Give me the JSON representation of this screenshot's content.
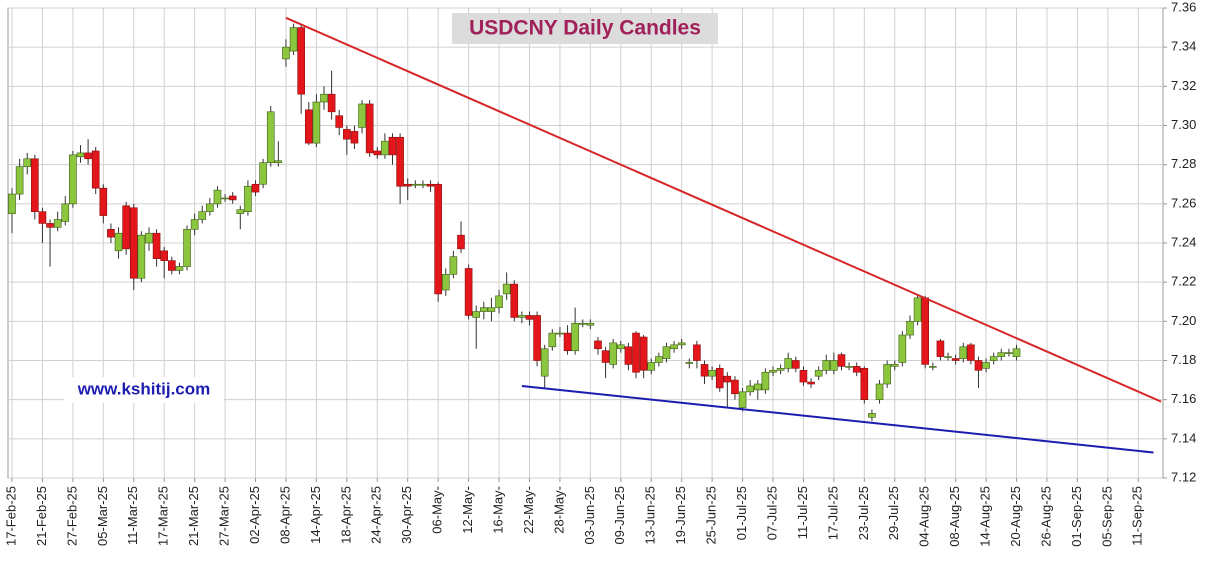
{
  "chart_data": {
    "type": "candlestick",
    "title": "USDCNY Daily Candles",
    "annotation": "www.kshitij.com",
    "categories": [
      "17-Feb-25",
      null,
      null,
      null,
      "21-Feb-25",
      null,
      null,
      null,
      "27-Feb-25",
      null,
      null,
      null,
      "05-Mar-25",
      null,
      null,
      null,
      "11-Mar-25",
      null,
      null,
      null,
      "17-Mar-25",
      null,
      null,
      null,
      "21-Mar-25",
      null,
      null,
      null,
      "27-Mar-25",
      null,
      null,
      null,
      "02-Apr-25",
      null,
      null,
      null,
      "08-Apr-25",
      null,
      null,
      null,
      "14-Apr-25",
      null,
      null,
      null,
      "18-Apr-25",
      null,
      null,
      null,
      "24-Apr-25",
      null,
      null,
      null,
      "30-Apr-25",
      null,
      null,
      null,
      "06-May-",
      null,
      null,
      null,
      "12-May-",
      null,
      null,
      null,
      "16-May-",
      null,
      null,
      null,
      "22-May-",
      null,
      null,
      null,
      "28-May-",
      null,
      null,
      null,
      "03-Jun-25",
      null,
      null,
      null,
      "09-Jun-25",
      null,
      null,
      null,
      "13-Jun-25",
      null,
      null,
      null,
      "19-Jun-25",
      null,
      null,
      null,
      "25-Jun-25",
      null,
      null,
      null,
      "01-Jul-25",
      null,
      null,
      null,
      "07-Jul-25",
      null,
      null,
      null,
      "11-Jul-25",
      null,
      null,
      null,
      "17-Jul-25",
      null,
      null,
      null,
      "23-Jul-25",
      null,
      null,
      null,
      "29-Jul-25",
      null,
      null,
      null,
      "04-Aug-25",
      null,
      null,
      null,
      "08-Aug-25",
      null,
      null,
      null,
      "14-Aug-25",
      null,
      null,
      null,
      "20-Aug-25",
      null,
      null,
      null,
      "26-Aug-25",
      null,
      null,
      null,
      "01-Sep-25",
      null,
      null,
      null,
      "05-Sep-25",
      null,
      null,
      null,
      "11-Sep-25",
      null
    ],
    "open": [
      7.255,
      7.265,
      7.279,
      7.283,
      7.256,
      7.25,
      7.248,
      7.251,
      7.26,
      7.284,
      7.286,
      7.287,
      7.268,
      7.247,
      7.236,
      7.259,
      7.258,
      7.222,
      7.24,
      7.245,
      7.236,
      7.231,
      7.226,
      7.228,
      7.247,
      7.252,
      7.256,
      7.26,
      7.263,
      7.264,
      7.255,
      7.256,
      7.27,
      7.27,
      7.281,
      7.281,
      7.334,
      7.338,
      7.35,
      7.308,
      7.291,
      7.312,
      7.316,
      7.305,
      7.298,
      7.297,
      7.299,
      7.311,
      7.287,
      7.285,
      7.294,
      7.294,
      7.27,
      7.27,
      7.27,
      7.27,
      7.27,
      7.216,
      7.224,
      7.244,
      7.227,
      7.202,
      7.205,
      7.205,
      7.207,
      7.214,
      7.219,
      7.202,
      7.203,
      7.203,
      7.172,
      7.187,
      7.194,
      7.194,
      7.185,
      7.199,
      7.198,
      7.19,
      7.185,
      7.178,
      7.186,
      7.187,
      7.194,
      7.192,
      7.175,
      7.179,
      7.181,
      7.186,
      7.188,
      7.179,
      7.188,
      7.178,
      7.172,
      7.176,
      7.172,
      7.17,
      7.156,
      7.164,
      7.165,
      7.165,
      7.174,
      7.175,
      7.176,
      7.18,
      7.175,
      7.169,
      7.172,
      7.175,
      7.175,
      7.183,
      7.177,
      7.177,
      7.176,
      7.151,
      7.16,
      7.168,
      7.177,
      7.179,
      7.193,
      7.2,
      7.212,
      7.177,
      7.19,
      7.182,
      7.181,
      7.181,
      7.188,
      7.18,
      7.176,
      7.18,
      7.182,
      7.184,
      7.182,
      null,
      null,
      null,
      null,
      null,
      null,
      null,
      null,
      null,
      null,
      null,
      null,
      null,
      null,
      null,
      null,
      null
    ],
    "high": [
      7.268,
      7.283,
      7.286,
      7.285,
      7.258,
      7.252,
      7.256,
      7.264,
      7.287,
      7.29,
      7.293,
      7.289,
      7.27,
      7.25,
      7.248,
      7.261,
      7.26,
      7.246,
      7.248,
      7.247,
      7.238,
      7.233,
      7.23,
      7.249,
      7.255,
      7.259,
      7.263,
      7.269,
      7.265,
      7.266,
      7.259,
      7.272,
      7.272,
      7.283,
      7.31,
      7.292,
      7.344,
      7.352,
      7.352,
      7.312,
      7.316,
      7.32,
      7.328,
      7.308,
      7.3,
      7.3,
      7.313,
      7.313,
      7.289,
      7.296,
      7.296,
      7.296,
      7.273,
      7.272,
      7.272,
      7.272,
      7.271,
      7.227,
      7.236,
      7.251,
      7.229,
      7.208,
      7.21,
      7.212,
      7.216,
      7.225,
      7.221,
      7.205,
      7.205,
      7.205,
      7.188,
      7.196,
      7.197,
      7.198,
      7.207,
      7.201,
      7.201,
      7.192,
      7.187,
      7.191,
      7.19,
      7.189,
      7.195,
      7.193,
      7.181,
      7.184,
      7.189,
      7.19,
      7.191,
      7.181,
      7.19,
      7.18,
      7.177,
      7.178,
      7.174,
      7.172,
      7.166,
      7.17,
      7.17,
      7.176,
      7.177,
      7.178,
      7.184,
      7.182,
      7.177,
      7.171,
      7.177,
      7.183,
      7.184,
      7.184,
      7.179,
      7.179,
      7.177,
      7.155,
      7.17,
      7.18,
      7.18,
      7.195,
      7.203,
      7.214,
      7.213,
      7.179,
      7.191,
      7.184,
      7.183,
      7.189,
      7.189,
      7.182,
      7.181,
      7.184,
      7.186,
      7.186,
      7.188,
      null,
      null,
      null,
      null,
      null,
      null,
      null,
      null,
      null,
      null,
      null,
      null,
      null,
      null,
      null,
      null,
      null
    ],
    "low": [
      7.245,
      7.262,
      7.275,
      7.252,
      7.24,
      7.228,
      7.246,
      7.249,
      7.258,
      7.281,
      7.28,
      7.265,
      7.25,
      7.24,
      7.232,
      7.234,
      7.216,
      7.22,
      7.236,
      7.228,
      7.222,
      7.224,
      7.224,
      7.226,
      7.244,
      7.25,
      7.254,
      7.258,
      7.261,
      7.26,
      7.247,
      7.254,
      7.264,
      7.268,
      7.279,
      7.279,
      7.33,
      7.336,
      7.306,
      7.29,
      7.289,
      7.308,
      7.303,
      7.295,
      7.285,
      7.288,
      7.296,
      7.284,
      7.283,
      7.283,
      7.28,
      7.26,
      7.262,
      7.268,
      7.268,
      7.266,
      7.21,
      7.213,
      7.222,
      7.235,
      7.201,
      7.186,
      7.201,
      7.2,
      7.204,
      7.211,
      7.2,
      7.199,
      7.198,
      7.177,
      7.166,
      7.185,
      7.192,
      7.183,
      7.183,
      7.197,
      7.196,
      7.183,
      7.171,
      7.176,
      7.184,
      7.175,
      7.171,
      7.171,
      7.173,
      7.177,
      7.179,
      7.184,
      7.186,
      7.176,
      7.176,
      7.168,
      7.17,
      7.164,
      7.156,
      7.16,
      7.154,
      7.162,
      7.16,
      7.163,
      7.172,
      7.173,
      7.174,
      7.174,
      7.167,
      7.166,
      7.17,
      7.173,
      7.173,
      7.175,
      7.175,
      7.172,
      7.158,
      7.149,
      7.158,
      7.166,
      7.175,
      7.177,
      7.191,
      7.198,
      7.176,
      7.175,
      7.18,
      7.18,
      7.178,
      7.179,
      7.178,
      7.166,
      7.174,
      7.178,
      7.18,
      7.182,
      7.18,
      null,
      null,
      null,
      null,
      null,
      null,
      null,
      null,
      null,
      null,
      null,
      null,
      null,
      null,
      null,
      null,
      null
    ],
    "close": [
      7.265,
      7.279,
      7.283,
      7.256,
      7.25,
      7.248,
      7.252,
      7.26,
      7.285,
      7.286,
      7.283,
      7.268,
      7.254,
      7.243,
      7.245,
      7.237,
      7.222,
      7.244,
      7.245,
      7.232,
      7.231,
      7.226,
      7.228,
      7.247,
      7.252,
      7.256,
      7.26,
      7.267,
      7.263,
      7.262,
      7.257,
      7.269,
      7.266,
      7.281,
      7.307,
      7.282,
      7.34,
      7.35,
      7.316,
      7.291,
      7.312,
      7.316,
      7.307,
      7.299,
      7.293,
      7.291,
      7.311,
      7.286,
      7.285,
      7.292,
      7.285,
      7.269,
      7.269,
      7.27,
      7.27,
      7.269,
      7.214,
      7.224,
      7.233,
      7.237,
      7.203,
      7.205,
      7.207,
      7.207,
      7.213,
      7.219,
      7.202,
      7.203,
      7.201,
      7.18,
      7.186,
      7.194,
      7.194,
      7.185,
      7.199,
      7.199,
      7.199,
      7.186,
      7.179,
      7.189,
      7.188,
      7.178,
      7.174,
      7.175,
      7.179,
      7.182,
      7.187,
      7.188,
      7.189,
      7.179,
      7.18,
      7.172,
      7.175,
      7.166,
      7.169,
      7.163,
      7.164,
      7.167,
      7.168,
      7.174,
      7.175,
      7.176,
      7.181,
      7.176,
      7.169,
      7.168,
      7.175,
      7.18,
      7.18,
      7.177,
      7.177,
      7.174,
      7.16,
      7.153,
      7.168,
      7.178,
      7.178,
      7.193,
      7.2,
      7.212,
      7.178,
      7.177,
      7.182,
      7.182,
      7.18,
      7.187,
      7.18,
      7.175,
      7.179,
      7.182,
      7.184,
      7.184,
      7.186,
      null,
      null,
      null,
      null,
      null,
      null,
      null,
      null,
      null,
      null,
      null,
      null,
      null,
      null,
      null,
      null,
      null
    ],
    "up_color": "#8cc63f",
    "down_color": "#e3171b",
    "trendlines": [
      {
        "color": "#d62728",
        "start": [
          36,
          7.355
        ],
        "end": [
          151,
          7.159
        ]
      },
      {
        "color": "#1c1cb0",
        "start": [
          67,
          7.167
        ],
        "end": [
          150,
          7.133
        ]
      }
    ],
    "ylim": [
      7.12,
      7.36
    ],
    "yticks": [
      7.12,
      7.14,
      7.16,
      7.18,
      {
        "value": 7.2,
        "label": "7.20"
      },
      7.22,
      7.24,
      7.26,
      7.28,
      {
        "value": 7.3,
        "label": "7.30"
      },
      7.32,
      7.34,
      7.36
    ],
    "grid": true
  }
}
